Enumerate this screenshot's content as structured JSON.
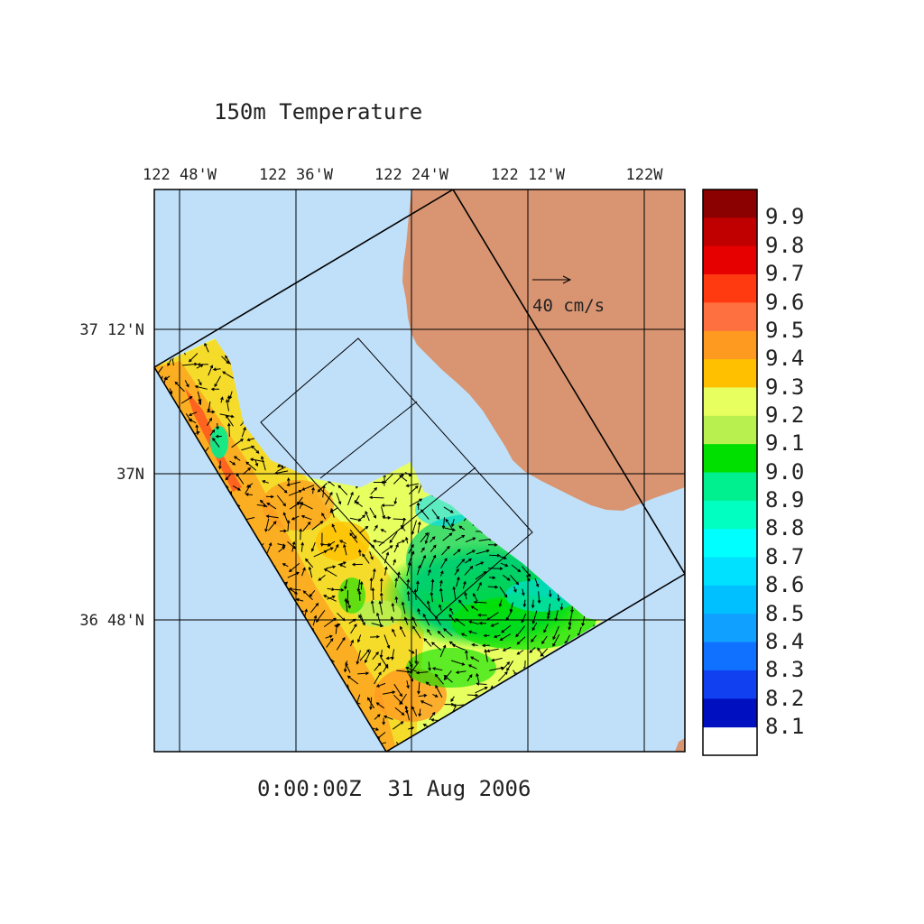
{
  "title": "150m Temperature",
  "timestamp": "0:00:00Z  31 Aug 2006",
  "longitude_labels": [
    "122 48'W",
    "122 36'W",
    "122 24'W",
    "122 12'W",
    "122W"
  ],
  "latitude_labels": [
    "37 12'N",
    "37N",
    "36 48'N"
  ],
  "vector_scale_label": "40 cm/s",
  "colorbar": {
    "labels": [
      "9.9",
      "9.8",
      "9.7",
      "9.6",
      "9.5",
      "9.4",
      "9.3",
      "9.2",
      "9.1",
      "9.0",
      "8.9",
      "8.8",
      "8.7",
      "8.6",
      "8.5",
      "8.4",
      "8.3",
      "8.2",
      "8.1"
    ],
    "colors": [
      "#8b0000",
      "#c00000",
      "#e60000",
      "#ff3a10",
      "#ff7040",
      "#ff9a20",
      "#ffc000",
      "#e8ff60",
      "#b8f050",
      "#00e000",
      "#00f090",
      "#00ffc0",
      "#00ffff",
      "#00e0ff",
      "#00c0ff",
      "#10a0ff",
      "#1070ff",
      "#1040f0",
      "#0010c0"
    ]
  },
  "colors": {
    "ocean": "#c0e0fa",
    "land": "#d99572",
    "frame": "#000000"
  }
}
